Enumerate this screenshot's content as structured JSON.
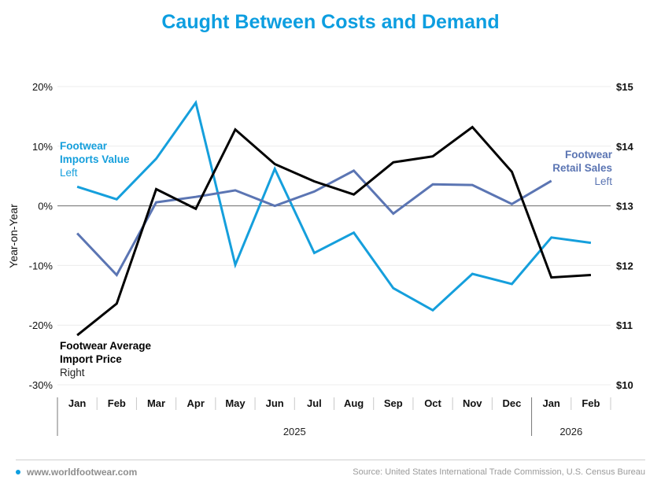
{
  "title": "Caught Between Costs and Demand",
  "footer": {
    "site": "www.worldfootwear.com",
    "source": "Source: United States International Trade Commission, U.S. Census Bureau"
  },
  "colors": {
    "title": "#0d9ee0",
    "imports_value": "#159fdc",
    "retail_sales": "#5b75b3",
    "import_price": "#000000"
  },
  "chart_data": {
    "type": "line",
    "title": "Caught Between Costs and Demand",
    "categories": [
      "Jan",
      "Feb",
      "Mar",
      "Apr",
      "May",
      "Jun",
      "Jul",
      "Aug",
      "Sep",
      "Oct",
      "Nov",
      "Dec",
      "Jan",
      "Feb"
    ],
    "year_groups": [
      {
        "label": "2025",
        "start": 0,
        "end": 11
      },
      {
        "label": "2026",
        "start": 12,
        "end": 13
      }
    ],
    "ylabel_left": "Year-on-Year",
    "ylim_left": [
      -30,
      20
    ],
    "yticks_left": [
      {
        "value": 20,
        "label": "20%"
      },
      {
        "value": 10,
        "label": "10%"
      },
      {
        "value": 0,
        "label": "0%"
      },
      {
        "value": -10,
        "label": "-10%"
      },
      {
        "value": -20,
        "label": "-20%"
      },
      {
        "value": -30,
        "label": "-30%"
      }
    ],
    "ylim_right": [
      10,
      15
    ],
    "yticks_right": [
      {
        "value": 15,
        "label": "$15"
      },
      {
        "value": 14,
        "label": "$14"
      },
      {
        "value": 13,
        "label": "$13"
      },
      {
        "value": 12,
        "label": "$12"
      },
      {
        "value": 11,
        "label": "$11"
      },
      {
        "value": 10,
        "label": "$10"
      }
    ],
    "grid": true,
    "series": [
      {
        "key": "imports_value",
        "name": "Footwear Imports Value",
        "axis": "left",
        "axis_label": "Left",
        "label_lines": [
          "Footwear",
          "Imports Value"
        ],
        "values": [
          3.2,
          1.1,
          7.9,
          17.3,
          -9.9,
          6.2,
          -7.9,
          -4.5,
          -13.8,
          -17.5,
          -11.4,
          -13.1,
          -5.3,
          -6.2
        ]
      },
      {
        "key": "retail_sales",
        "name": "Footwear Retail Sales",
        "axis": "left",
        "axis_label": "Left",
        "label_lines": [
          "Footwear",
          "Retail Sales"
        ],
        "values": [
          -4.6,
          -11.6,
          0.6,
          1.5,
          2.6,
          0.0,
          2.4,
          5.9,
          -1.3,
          3.6,
          3.5,
          0.3,
          4.2,
          null
        ]
      },
      {
        "key": "import_price",
        "name": "Footwear Average Import Price",
        "axis": "right",
        "axis_label": "Right",
        "label_lines": [
          "Footwear Average",
          "Import Price"
        ],
        "values": [
          10.83,
          11.36,
          13.28,
          12.95,
          14.28,
          13.7,
          13.41,
          13.19,
          13.73,
          13.83,
          14.32,
          13.57,
          11.8,
          11.84
        ]
      }
    ]
  }
}
